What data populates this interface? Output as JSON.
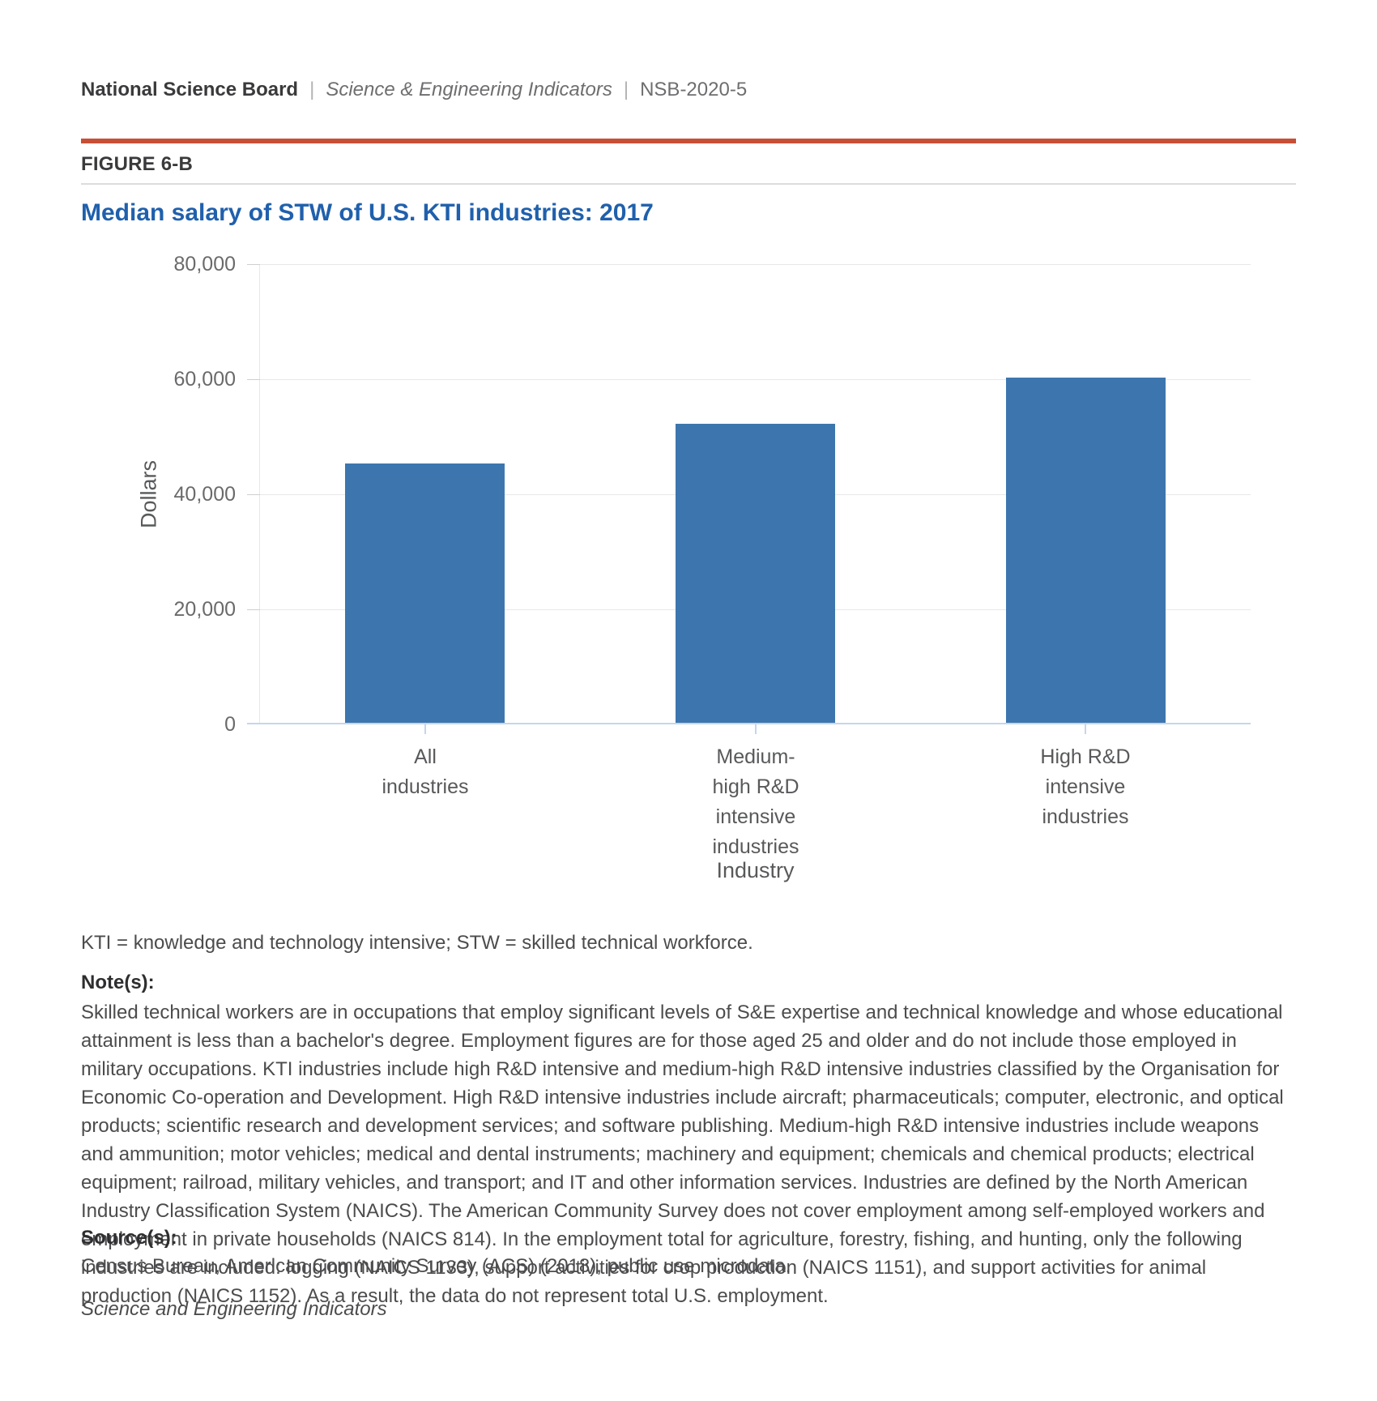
{
  "header": {
    "brand": "National Science Board",
    "separator": "|",
    "publication": "Science & Engineering Indicators",
    "report_id": "NSB-2020-5",
    "figure_label": "FIGURE 6-B"
  },
  "chart_data": {
    "type": "bar",
    "title": "Median salary of STW of U.S. KTI industries: 2017",
    "categories": [
      "All industries",
      "Medium-high R&D intensive industries",
      "High R&D intensive industries"
    ],
    "category_label_lines": [
      [
        "All",
        "industries"
      ],
      [
        "Medium-",
        "high R&D",
        "intensive",
        "industries"
      ],
      [
        "High R&D",
        "intensive",
        "industries"
      ]
    ],
    "values": [
      45000,
      52000,
      60000
    ],
    "xlabel": "Industry",
    "ylabel": "Dollars",
    "ylim": [
      0,
      80000
    ],
    "yticks": [
      {
        "value": 0,
        "label": "0"
      },
      {
        "value": 20000,
        "label": "20,000"
      },
      {
        "value": 40000,
        "label": "40,000"
      },
      {
        "value": 60000,
        "label": "60,000"
      },
      {
        "value": 80000,
        "label": "80,000"
      }
    ],
    "grid": true,
    "legend_position": "none",
    "bar_color": "#3D76AE"
  },
  "footnotes": {
    "abbreviations": "KTI = knowledge and technology intensive; STW = skilled technical workforce.",
    "notes_heading": "Note(s):",
    "notes_body": "Skilled technical workers are in occupations that employ significant levels of S&E expertise and technical knowledge and whose educational attainment is less than a bachelor's degree. Employment figures are for those aged 25 and older and do not include those employed in military occupations. KTI industries include high R&D intensive and medium-high R&D intensive industries classified by the Organisation for Economic Co-operation and Development. High R&D intensive industries include aircraft; pharmaceuticals; computer, electronic, and optical products; scientific research and development services; and software publishing. Medium-high R&D intensive industries include weapons and ammunition; motor vehicles; medical and dental instruments; machinery and equipment; chemicals and chemical products; electrical equipment; railroad, military vehicles, and transport; and IT and other information services. Industries are defined by the North American Industry Classification System (NAICS). The American Community Survey does not cover employment among self-employed workers and employment in private households (NAICS 814). In the employment total for agriculture, forestry, fishing, and hunting, only the following industries are included: logging (NAICS 1133), support activities for crop production (NAICS 1151), and support activities for animal production (NAICS 1152). As a result, the data do not represent total U.S. employment.",
    "source_heading": "Source(s):",
    "source_body": "Census Bureau, American Community Survey (ACS) (2018), public use microdata.",
    "footer_italic": "Science and Engineering Indicators"
  },
  "colors": {
    "accent_rule": "#C74F35",
    "title_blue": "#2060AC",
    "bar_blue": "#3D76AE",
    "baseline_blue": "#C7D5EC",
    "gridline": "#E8E8E8",
    "divider_gray": "#DCDCDC"
  }
}
